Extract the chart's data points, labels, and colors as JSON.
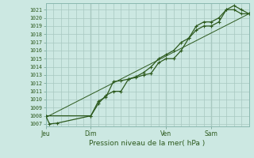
{
  "bg_color": "#cce8e2",
  "grid_color": "#a8c8c0",
  "line_color": "#2d5a1e",
  "xlabel": "Pression niveau de la mer( hPa )",
  "yticks": [
    1007,
    1008,
    1009,
    1010,
    1011,
    1012,
    1013,
    1014,
    1015,
    1016,
    1017,
    1018,
    1019,
    1020,
    1021
  ],
  "ylim": [
    1006.7,
    1021.8
  ],
  "xlim": [
    0,
    162
  ],
  "xtick_labels": [
    "Jeu",
    "Dim",
    "Ven",
    "Sam"
  ],
  "xtick_positions": [
    0,
    36,
    96,
    132
  ],
  "vline_positions": [
    36,
    96,
    132
  ],
  "line1_x": [
    0,
    3,
    9,
    36,
    42,
    48,
    54,
    60,
    66,
    72,
    78,
    84,
    90,
    96,
    102,
    108,
    114,
    120,
    126,
    132,
    138,
    144,
    150,
    156,
    162
  ],
  "line1_y": [
    1008.0,
    1007.0,
    1007.1,
    1008.0,
    1009.5,
    1010.5,
    1011.0,
    1011.0,
    1012.5,
    1012.7,
    1013.0,
    1013.2,
    1014.5,
    1015.0,
    1015.0,
    1016.0,
    1017.5,
    1018.5,
    1019.0,
    1019.0,
    1019.5,
    1021.0,
    1021.5,
    1021.0,
    1020.5
  ],
  "line2_x": [
    0,
    36,
    42,
    48,
    54,
    60,
    66,
    72,
    78,
    84,
    90,
    96,
    102,
    108,
    114,
    120,
    126,
    132,
    138,
    144,
    150,
    156,
    162
  ],
  "line2_y": [
    1008.0,
    1008.0,
    1009.8,
    1010.3,
    1012.2,
    1012.3,
    1012.5,
    1012.8,
    1013.3,
    1014.0,
    1015.0,
    1015.5,
    1016.0,
    1017.0,
    1017.5,
    1019.0,
    1019.5,
    1019.5,
    1020.0,
    1021.0,
    1021.0,
    1020.5,
    1020.5
  ],
  "trend_x": [
    0,
    162
  ],
  "trend_y": [
    1007.8,
    1020.5
  ]
}
